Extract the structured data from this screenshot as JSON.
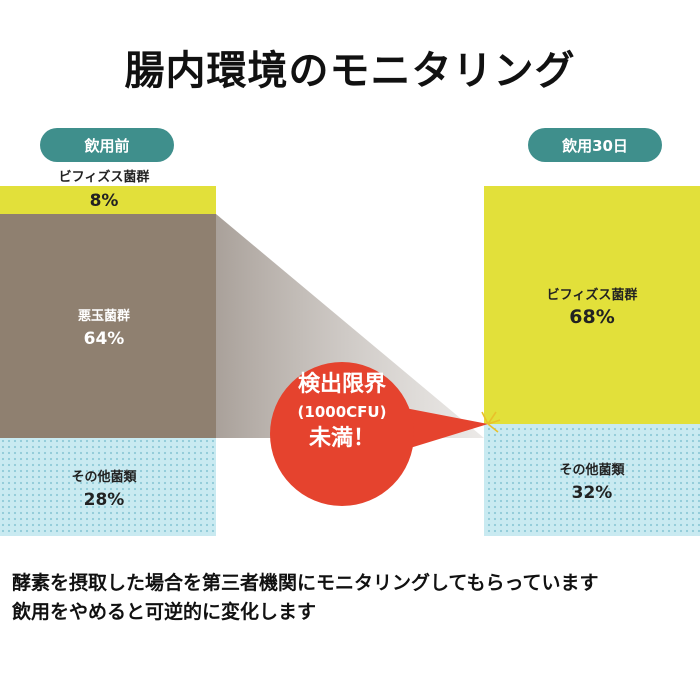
{
  "title": "腸内環境のモニタリング",
  "callout": {
    "line1": "検出限界",
    "line2": "(1000CFU)",
    "line3": "未満！"
  },
  "description": {
    "line1": "酵素を摂取した場合を第三者機関にモニタリングしてもらっています",
    "line2": "飲用をやめると可逆的に変化します"
  },
  "colors": {
    "bifido": "#e2e03a",
    "bad": "#8f8070",
    "other": "#bfe6ee",
    "other_dot": "#8fcad8",
    "pill": "#3f8f8c",
    "callout": "#e5432e"
  },
  "chart_data": {
    "type": "bar",
    "stacked": true,
    "categories": [
      "飲用前",
      "飲用30日"
    ],
    "series": [
      {
        "name": "ビフィズス菌群",
        "values": [
          8,
          68
        ],
        "value_labels": [
          "8%",
          "68%"
        ]
      },
      {
        "name": "悪玉菌群",
        "values": [
          64,
          0
        ],
        "value_labels": [
          "64%",
          ""
        ]
      },
      {
        "name": "その他菌類",
        "values": [
          28,
          32
        ],
        "value_labels": [
          "28%",
          "32%"
        ]
      }
    ],
    "ylim": [
      0,
      100
    ]
  }
}
